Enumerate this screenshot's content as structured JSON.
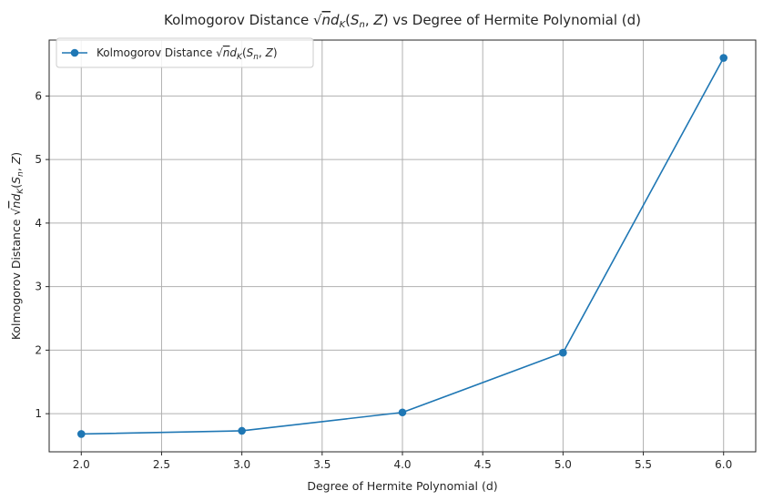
{
  "chart_data": {
    "type": "line",
    "title": "Kolmogorov Distance √n d_K(S_n, Z) vs Degree of Hermite Polynomial (d)",
    "xlabel": "Degree of Hermite Polynomial (d)",
    "ylabel": "Kolmogorov Distance √n d_K(S_n, Z)",
    "xlim": [
      1.8,
      6.2
    ],
    "ylim": [
      0.4,
      6.88
    ],
    "xticks": [
      2.0,
      2.5,
      3.0,
      3.5,
      4.0,
      4.5,
      5.0,
      5.5,
      6.0
    ],
    "xtick_labels": [
      "2.0",
      "2.5",
      "3.0",
      "3.5",
      "4.0",
      "4.5",
      "5.0",
      "5.5",
      "6.0"
    ],
    "yticks": [
      1,
      2,
      3,
      4,
      5,
      6
    ],
    "ytick_labels": [
      "1",
      "2",
      "3",
      "4",
      "5",
      "6"
    ],
    "grid": true,
    "legend_position": "top-left",
    "series": [
      {
        "name": "Kolmogorov Distance √n d_K(S_n, Z)",
        "color": "#1f77b4",
        "marker": "circle",
        "x": [
          2,
          3,
          4,
          5,
          6
        ],
        "y": [
          0.68,
          0.73,
          1.02,
          1.96,
          6.6
        ]
      }
    ]
  }
}
